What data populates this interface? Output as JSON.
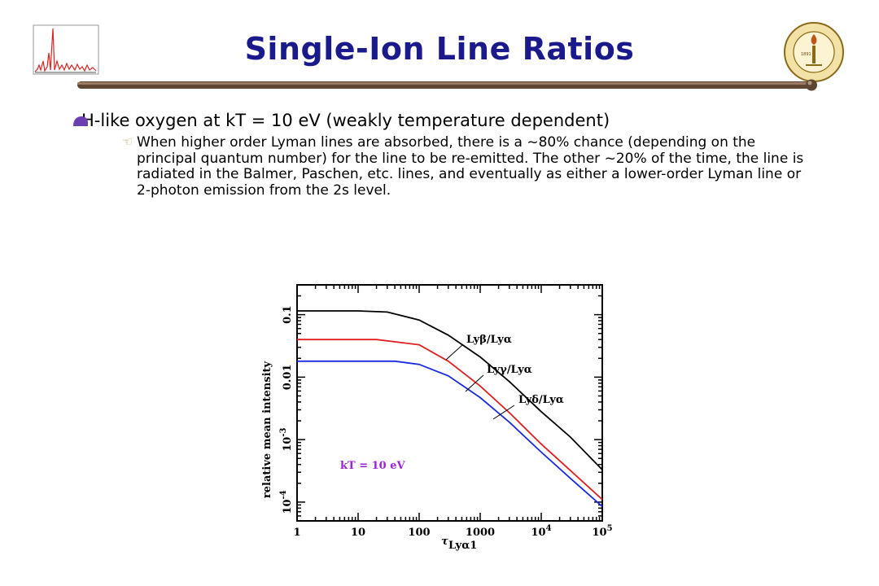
{
  "slide": {
    "title": "Single-Ion Line Ratios",
    "bullet1": "H-like oxygen at kT = 10 eV (weakly temperature dependent)",
    "bullet2": "When higher order Lyman lines are absorbed, there is a ~80% chance (depending on the principal quantum number) for the line to be re-emitted.  The other ~20% of the time, the line is radiated in the Balmer, Paschen, etc. lines, and eventually as either a lower-order Lyman line or 2-photon emission from the 2s level.",
    "title_color": "#1a1a8c",
    "bullet_icon": "rounded-bullet-icon",
    "sub_bullet_icon": "pointing-hand-icon"
  },
  "chart_data": {
    "type": "line",
    "xscale": "log",
    "yscale": "log",
    "xlim": [
      1,
      100000
    ],
    "ylim": [
      5e-05,
      0.3
    ],
    "xlabel": "τ",
    "xlabel_sub": "Lyα1",
    "ylabel": "relative mean intensity",
    "xticks": [
      1,
      10,
      100,
      1000,
      10000,
      100000
    ],
    "xtick_labels": [
      "1",
      "10",
      "100",
      "1000",
      "10^4",
      "10^5"
    ],
    "yticks": [
      0.0001,
      0.001,
      0.01,
      0.1
    ],
    "ytick_labels": [
      "10^-4",
      "10^-3",
      "0.01",
      "0.1"
    ],
    "annotation": "kT = 10 eV",
    "annotation_color": "#9b22d6",
    "series": [
      {
        "name": "Lyβ/Lyα",
        "color": "#000000",
        "x": [
          1,
          10,
          30,
          100,
          300,
          1000,
          3000,
          10000,
          30000,
          100000
        ],
        "y": [
          0.115,
          0.115,
          0.11,
          0.082,
          0.047,
          0.021,
          0.0085,
          0.0028,
          0.0011,
          0.00033
        ]
      },
      {
        "name": "Lyγ/Lyα",
        "color": "#e02020",
        "x": [
          1,
          10,
          20,
          100,
          300,
          1000,
          3000,
          10000,
          30000,
          100000
        ],
        "y": [
          0.04,
          0.04,
          0.04,
          0.033,
          0.018,
          0.0072,
          0.0027,
          0.00085,
          0.00032,
          0.00011
        ]
      },
      {
        "name": "Lyδ/Lyα",
        "color": "#1a2ae0",
        "x": [
          1,
          10,
          40,
          100,
          300,
          1000,
          3000,
          10000,
          30000,
          100000
        ],
        "y": [
          0.018,
          0.018,
          0.018,
          0.016,
          0.0105,
          0.0047,
          0.0019,
          0.00063,
          0.00024,
          8.5e-05
        ]
      }
    ]
  }
}
